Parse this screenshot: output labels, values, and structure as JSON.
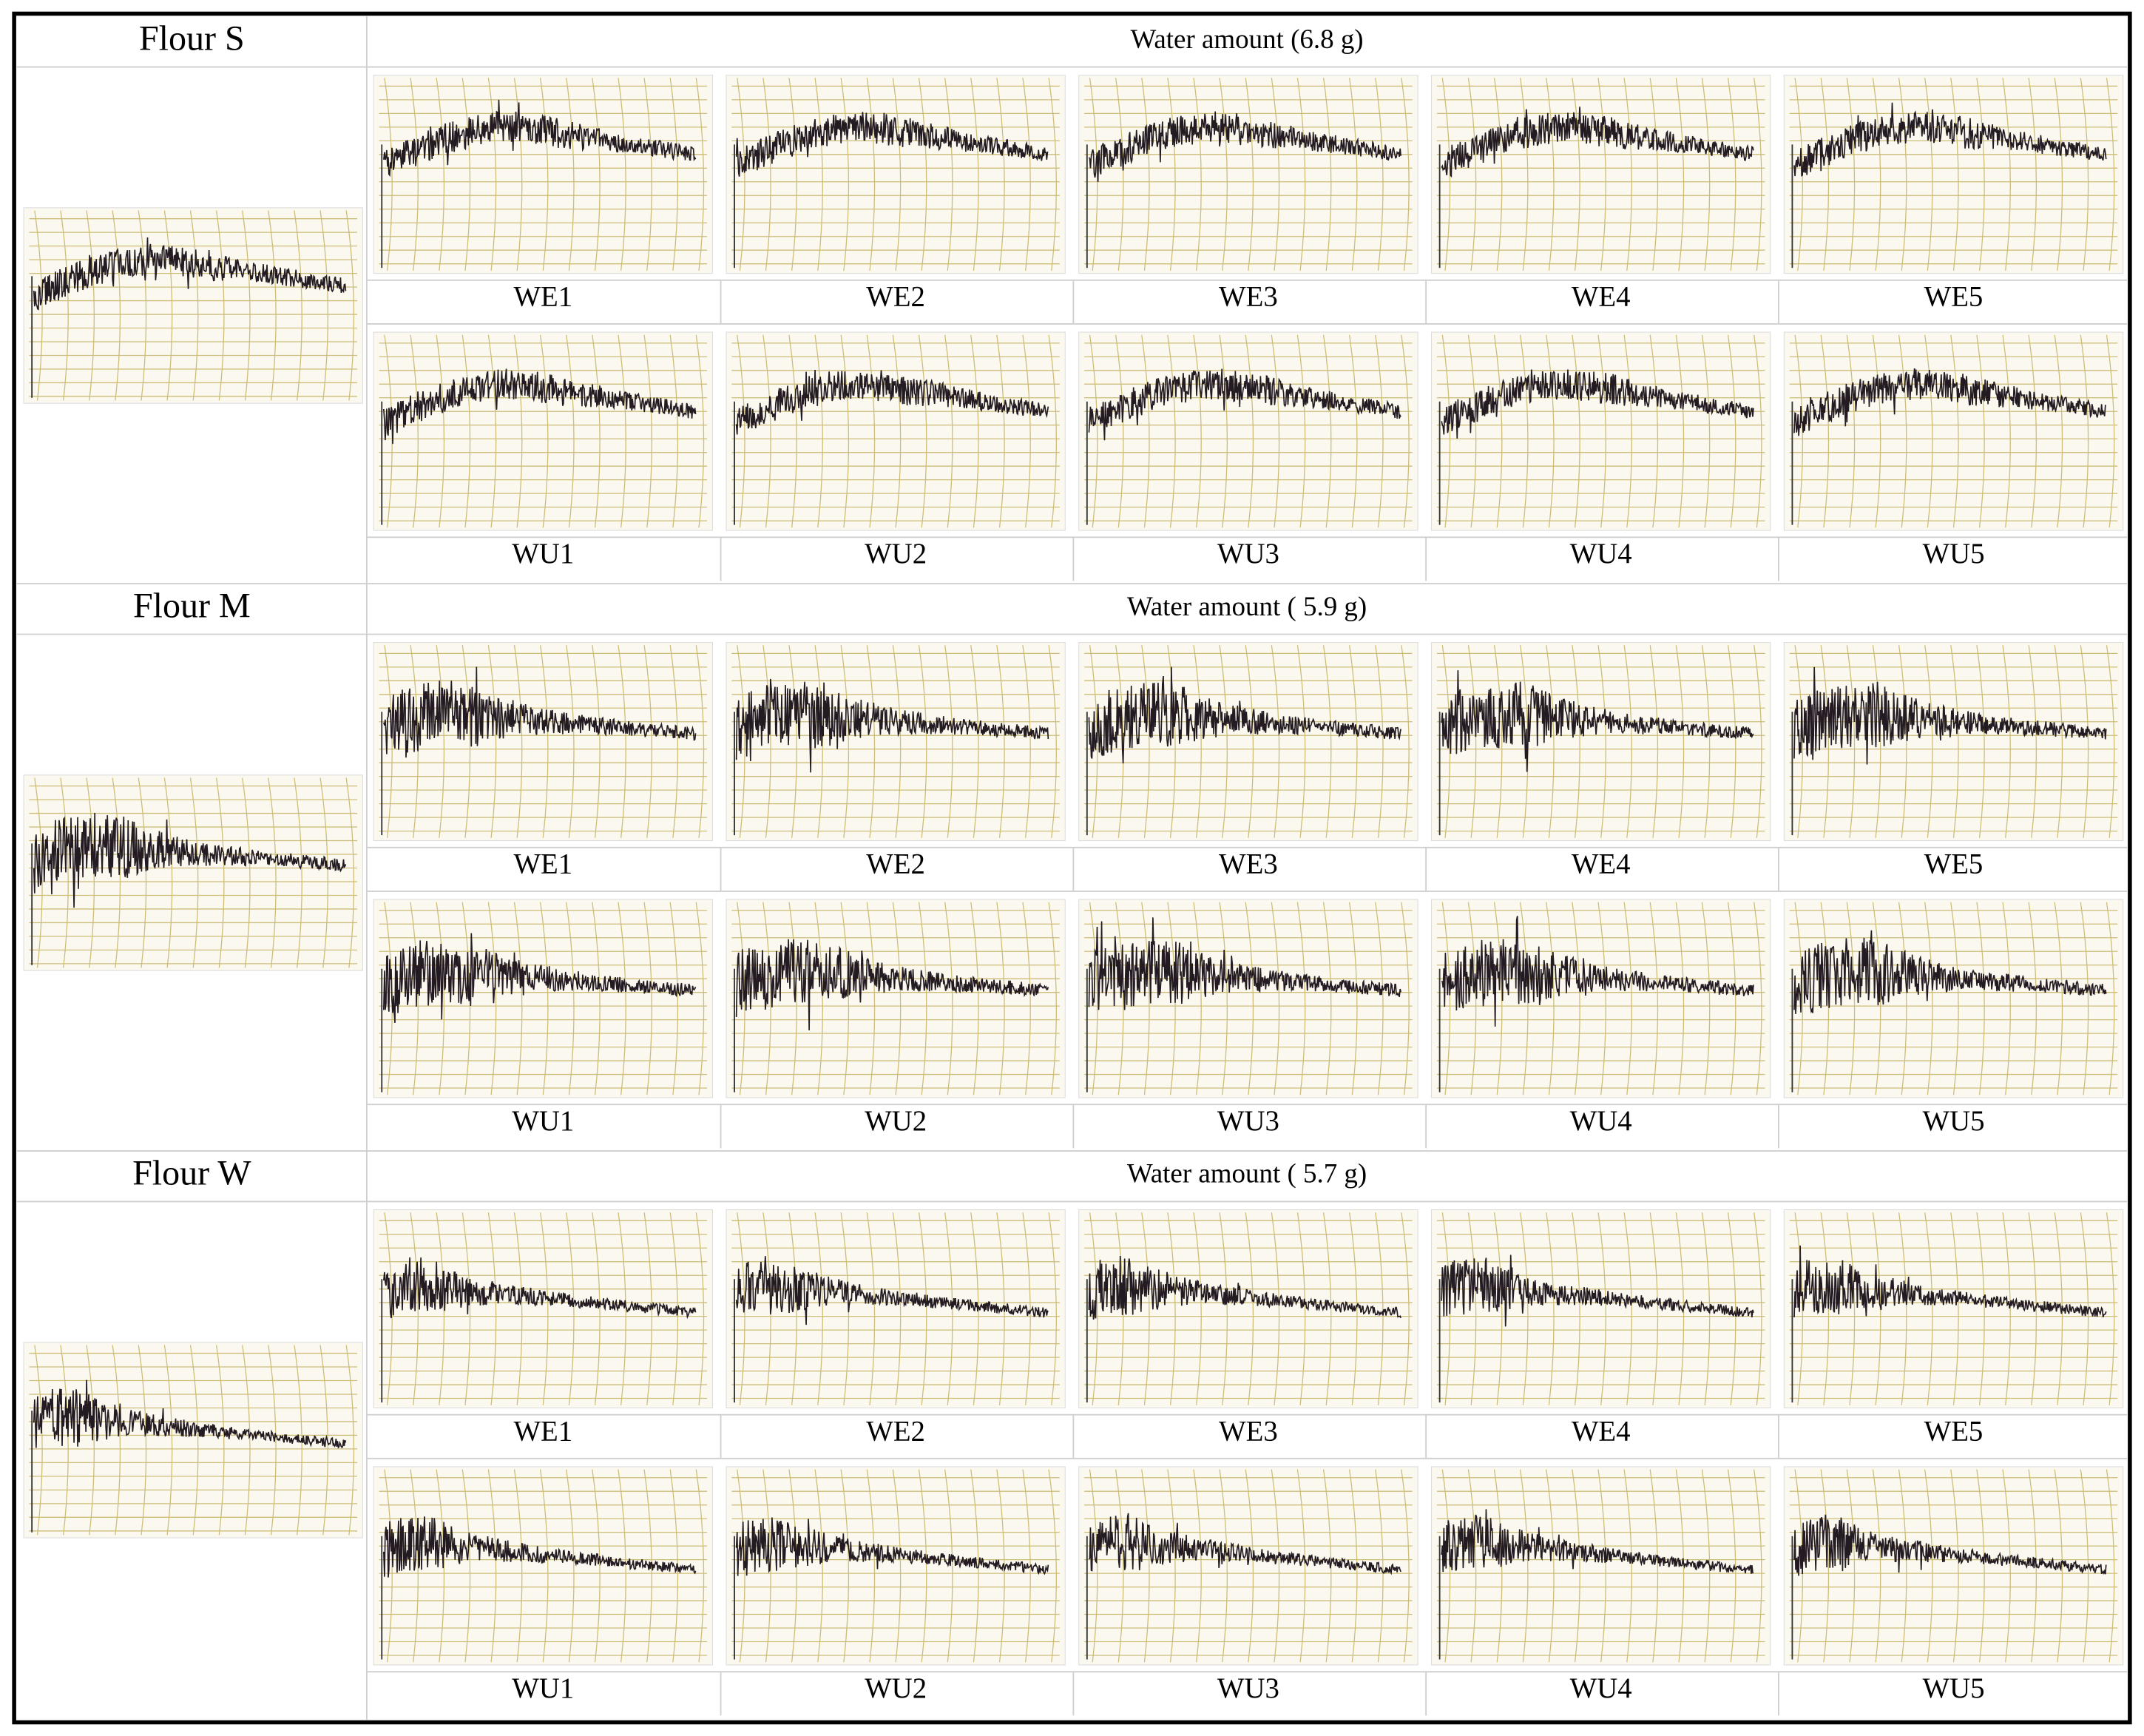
{
  "sections": [
    {
      "flour": "Flour S",
      "water": "Water amount (6.8 g)",
      "rows": [
        [
          "WE1",
          "WE2",
          "WE3",
          "WE4",
          "WE5"
        ],
        [
          "WU1",
          "WU2",
          "WU3",
          "WU4",
          "WU5"
        ]
      ]
    },
    {
      "flour": "Flour M",
      "water": "Water amount ( 5.9 g)",
      "rows": [
        [
          "WE1",
          "WE2",
          "WE3",
          "WE4",
          "WE5"
        ],
        [
          "WU1",
          "WU2",
          "WU3",
          "WU4",
          "WU5"
        ]
      ]
    },
    {
      "flour": "Flour W",
      "water": "Water amount ( 5.7 g)",
      "rows": [
        [
          "WE1",
          "WE2",
          "WE3",
          "WE4",
          "WE5"
        ],
        [
          "WU1",
          "WU2",
          "WU3",
          "WU4",
          "WU5"
        ]
      ]
    }
  ]
}
